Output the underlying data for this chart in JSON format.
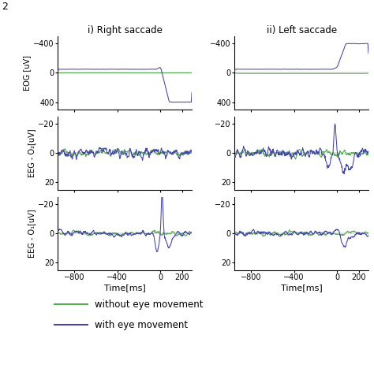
{
  "col_titles": [
    "i) Right saccade",
    "ii) Left saccade"
  ],
  "row_ylabels": [
    "EOG [uV]",
    "EEG - O₂[uV]",
    "EEG - O₁[uV]"
  ],
  "xlabel": "Time[ms]",
  "color_without": "#55aa55",
  "color_with": "#4444aa",
  "legend_labels": [
    "without eye movement",
    "with eye movement"
  ],
  "bg_color": "#ffffff",
  "fig_label": "2",
  "eog_yticks": [
    -400,
    0,
    400
  ],
  "eeg_yticks": [
    -20,
    0,
    20
  ],
  "xticks": [
    -800,
    -400,
    0,
    200
  ]
}
